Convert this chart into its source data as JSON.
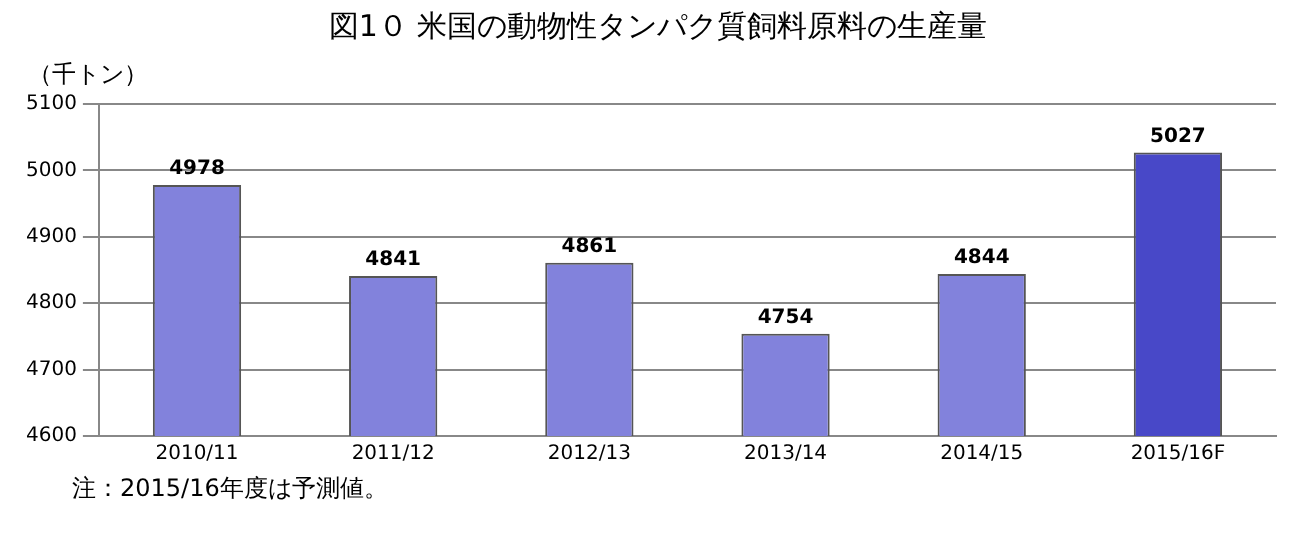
{
  "chart_data": {
    "type": "bar",
    "title": "図1０ 米国の動物性タンパク質飼料原料の生産量",
    "ylabel": "（千トン）",
    "categories": [
      "2010/11",
      "2011/12",
      "2012/13",
      "2013/14",
      "2014/15",
      "2015/16F"
    ],
    "values": [
      4978,
      4841,
      4861,
      4754,
      4844,
      5027
    ],
    "colors": [
      "#8282dc",
      "#8282dc",
      "#8282dc",
      "#8282dc",
      "#8282dc",
      "#4848c8"
    ],
    "ylim": [
      4600,
      5100
    ],
    "yticks": [
      4600,
      4700,
      4800,
      4900,
      5000,
      5100
    ],
    "grid": "y",
    "data_labels": true,
    "legend": false,
    "annotations": [
      "注：2015/16年度は予測値。"
    ]
  }
}
